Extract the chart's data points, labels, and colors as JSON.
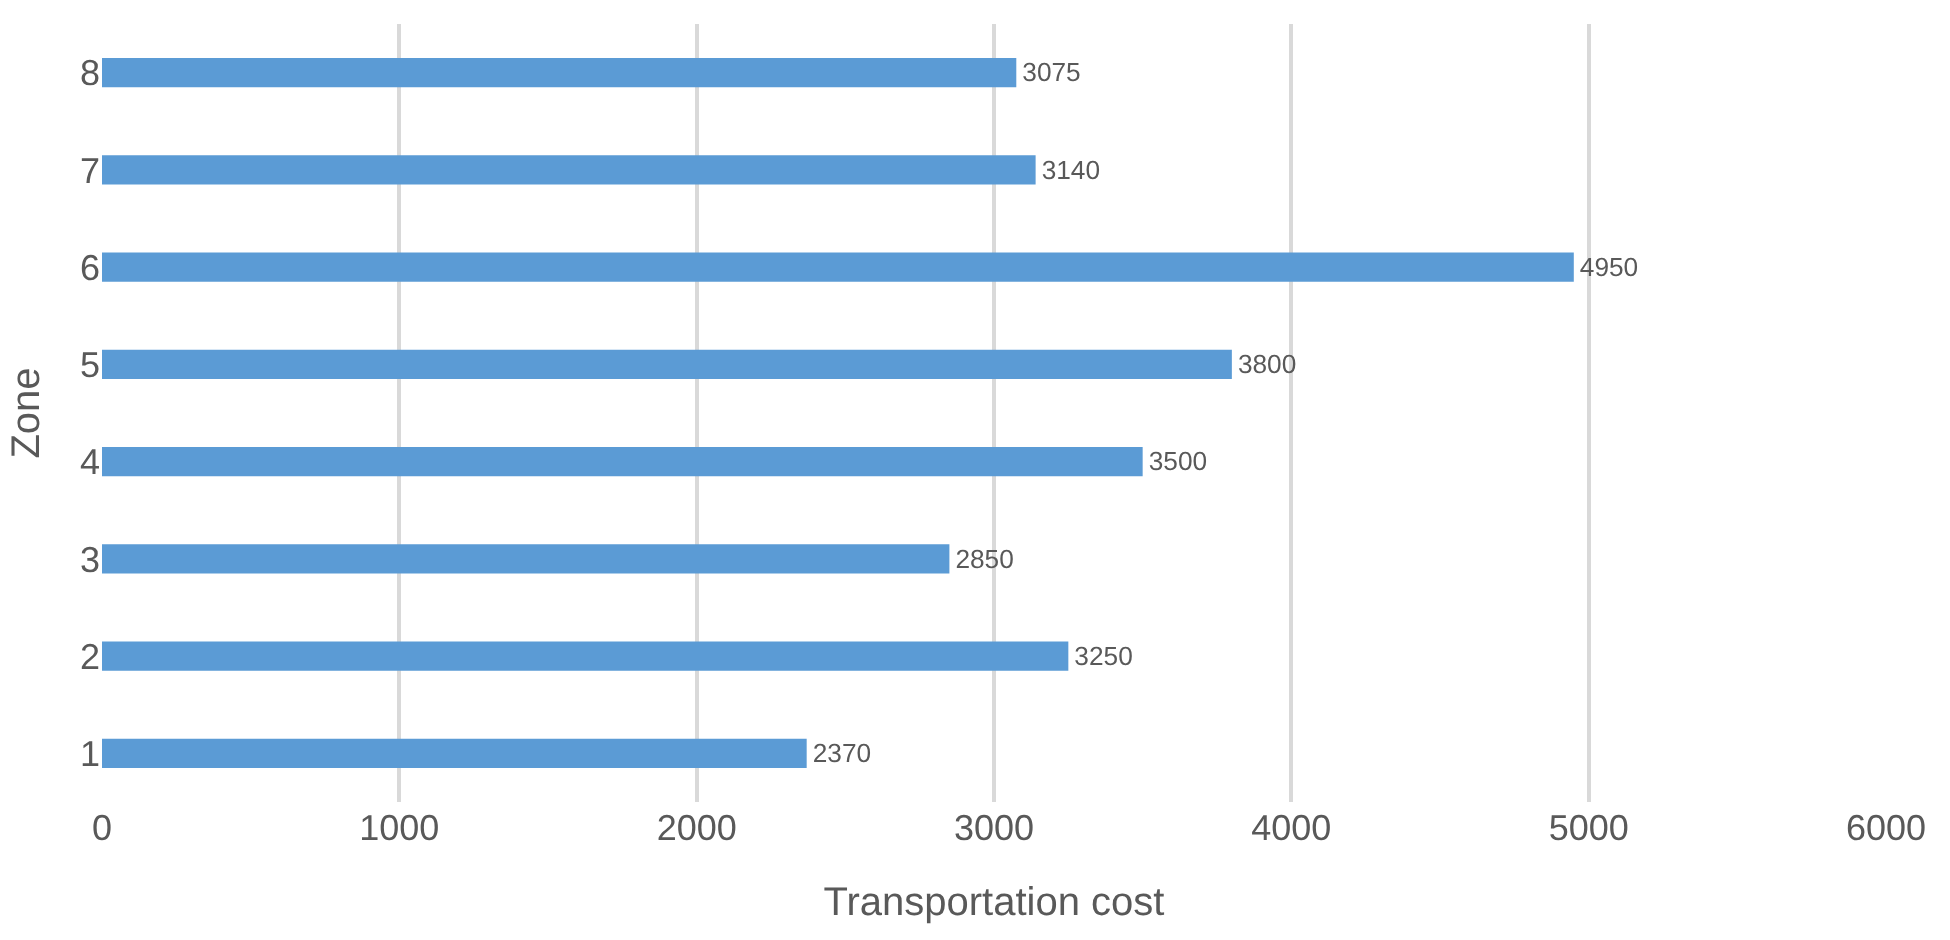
{
  "chart_data": {
    "type": "bar",
    "orientation": "horizontal",
    "xlabel": "Transportation cost",
    "ylabel": "Zone",
    "categories": [
      "8",
      "7",
      "6",
      "5",
      "4",
      "3",
      "2",
      "1"
    ],
    "values": [
      3075,
      3140,
      4950,
      3800,
      3500,
      2850,
      3250,
      2370
    ],
    "color": "#5b9bd5",
    "xlim": [
      0,
      6000
    ],
    "xticks": [
      0,
      1000,
      2000,
      3000,
      4000,
      5000,
      6000
    ],
    "grid": "x",
    "data_labels": true
  }
}
